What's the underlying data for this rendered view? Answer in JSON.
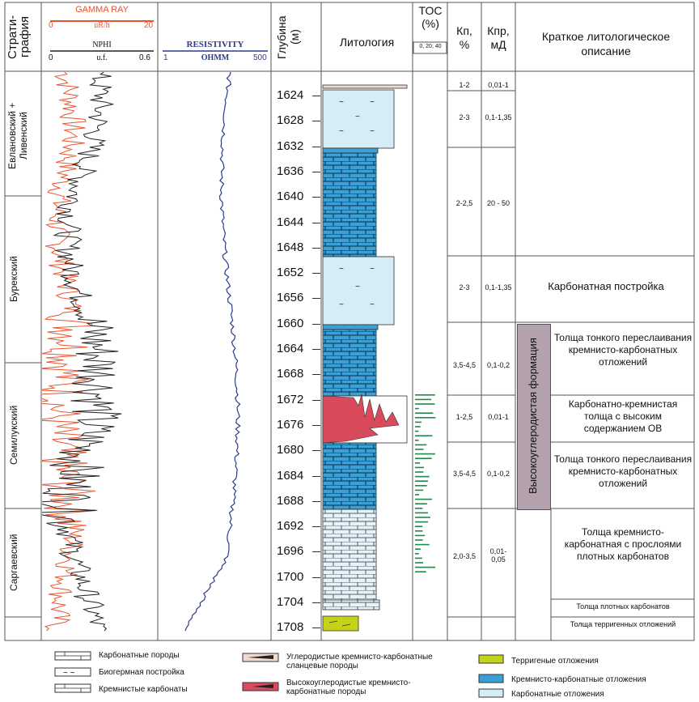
{
  "colors": {
    "gamma": "#e8542f",
    "nphi": "#222222",
    "resistivity": "#2c3a8c",
    "silic_carbonate": "#3aa0d6",
    "carbonate": "#d6ecf7",
    "high_ov": "#d94b5c",
    "terrigenous": "#c4d21a",
    "toc": "#1e8a4a",
    "formation_box": "#b3a2ad"
  },
  "header": {
    "strat_label": "Страти-\nграфия",
    "gamma_title": "GAMMA RAY",
    "gamma_min": "0",
    "gamma_unit": "uR/h",
    "gamma_max": "20",
    "nphi_title": "NPHI",
    "nphi_min": "0",
    "nphi_unit": "u.f.",
    "nphi_max": "0.6",
    "res_title": "RESISTIVITY",
    "res_min": "1",
    "res_unit": "OHMM",
    "res_max": "500",
    "depth_label": "Глубина\n(м)",
    "lith_label": "Литология",
    "toc_label": "ТОС\n(%)",
    "toc_scale": "0, 20, 40",
    "kp_label": "Кп,\n%",
    "kpr_label": "Кпр,\nмД",
    "desc_label": "Краткое литологическое описание"
  },
  "stratigraphy": [
    {
      "name": "Евлановский +\nЛивенский"
    },
    {
      "name": "Бурекский"
    },
    {
      "name": "Семилукский"
    },
    {
      "name": "Саргаевский"
    }
  ],
  "depth_ticks": [
    "1624",
    "1628",
    "1632",
    "1636",
    "1640",
    "1644",
    "1648",
    "1652",
    "1656",
    "1660",
    "1664",
    "1668",
    "1672",
    "1676",
    "1680",
    "1684",
    "1688",
    "1692",
    "1696",
    "1700",
    "1704",
    "1708"
  ],
  "kp_values": [
    "1-2",
    "2-3",
    "2-2,5",
    "2-3",
    "3,5-4,5",
    "1-2,5",
    "3,5-4,5",
    "2,0-3,5"
  ],
  "kpr_values": [
    "0,01-1",
    "0,1-1,35",
    "20 - 50",
    "0,1-1,35",
    "0,1-0,2",
    "0,01-1",
    "0,1-0,2",
    "0,01-\n0,05"
  ],
  "formation_label": "Высокоуглеродистая формация",
  "descriptions": [
    "Карбонатная постройка",
    "Толща тонкого переслаивания кремнисто-карбонатных отложений",
    "Карбонатно-кремнистая толща с высоким содержанием ОВ",
    "Толща тонкого переслаивания кремнисто-карбонатных отложений",
    "Толща кремнисто-карбонатная с прослоями плотных карбонатов",
    "Толща плотных карбонатов",
    "Толща терригенных отложений"
  ],
  "legend": {
    "carbonate_rocks": "Карбонатные породы",
    "biogenic": "Биогермная постройка",
    "silicic_carbonates": "Кремнистые карбонаты",
    "carbonaceous_shale": "Углеродистые кремнисто-карбонатные сланцевые породы",
    "high_carbon": "Высокоуглеродистые кремнисто-карбонатные породы",
    "terrigenous": "Терригеные отложения",
    "silic_carb_dep": "Кремнисто-карбонатные отложения",
    "carb_dep": "Карбонатные отложения"
  }
}
